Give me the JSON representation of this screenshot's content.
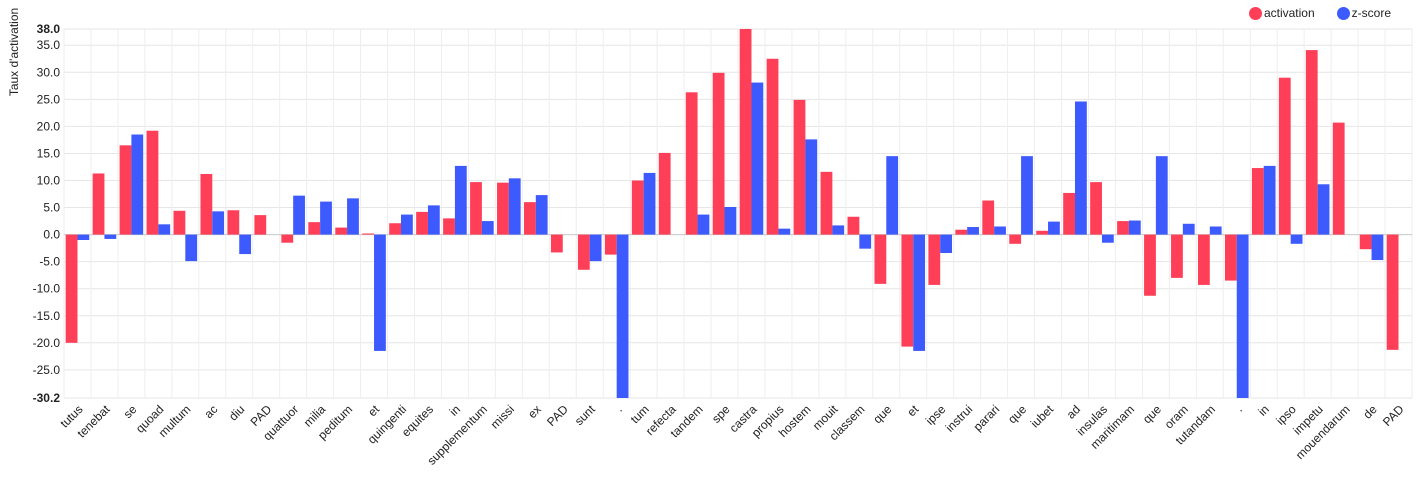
{
  "chart_data": {
    "type": "bar",
    "ylabel": "Taux d'activation",
    "ylim": [
      -30.2,
      38.0
    ],
    "yticks": [
      "38.0",
      "35.0",
      "30.0",
      "25.0",
      "20.0",
      "15.0",
      "10.0",
      "5.0",
      "0.0",
      "-5.0",
      "-10.0",
      "-15.0",
      "-20.0",
      "-25.0",
      "-30.2"
    ],
    "ytick_values": [
      38.0,
      35,
      30,
      25,
      20,
      15,
      10,
      5,
      0,
      -5,
      -10,
      -15,
      -20,
      -25,
      -30.2
    ],
    "grid": true,
    "legend_position": "top-right",
    "categories": [
      "tutus",
      "tenebat",
      "se",
      "quoad",
      "multum",
      "ac",
      "diu",
      "PAD",
      "quattuor",
      "milia",
      "peditum",
      "et",
      "quingenti",
      "equites",
      "in",
      "supplementum",
      "missi",
      "ex",
      "PAD",
      "sunt",
      ".",
      "tum",
      "refecta",
      "tandem",
      "spe",
      "castra",
      "propius",
      "hostem",
      "mouit",
      "classem",
      "que",
      "et",
      "ipse",
      "instrui",
      "parari",
      "que",
      "iubet",
      "ad",
      "insulas",
      "maritimam",
      "que",
      "oram",
      "tutandam",
      ".",
      "in",
      "ipso",
      "impetu",
      "mouendarum",
      "de",
      "PAD"
    ],
    "series": [
      {
        "name": "activation",
        "color": "#ff3e57",
        "values": [
          -20.0,
          11.3,
          16.5,
          19.2,
          4.4,
          11.2,
          4.5,
          3.6,
          -1.5,
          2.3,
          1.3,
          0.2,
          2.1,
          4.2,
          3.0,
          9.7,
          9.6,
          6.0,
          -3.3,
          -6.5,
          -3.7,
          10.0,
          15.1,
          26.3,
          29.9,
          38.0,
          32.5,
          24.9,
          11.6,
          3.3,
          -9.1,
          -20.7,
          -9.3,
          0.9,
          6.3,
          -1.7,
          0.7,
          7.7,
          9.7,
          2.5,
          -11.3,
          -8.0,
          -9.3,
          -8.5,
          12.3,
          29.0,
          34.1,
          20.7,
          -2.7,
          -21.3
        ]
      },
      {
        "name": "z-score",
        "color": "#3d5afe",
        "values": [
          -1.0,
          -0.8,
          18.5,
          1.9,
          -4.9,
          4.3,
          -3.6,
          0.0,
          7.2,
          6.1,
          6.7,
          -21.5,
          3.7,
          5.4,
          12.7,
          2.5,
          10.4,
          7.3,
          0.0,
          -4.9,
          -30.2,
          11.4,
          0.0,
          3.7,
          5.1,
          28.1,
          1.1,
          17.6,
          1.7,
          -2.6,
          14.5,
          -21.5,
          -3.4,
          1.4,
          1.5,
          14.5,
          2.4,
          24.6,
          -1.5,
          2.6,
          14.5,
          2.0,
          1.5,
          -30.2,
          12.7,
          -1.7,
          9.3,
          0.0,
          -4.7,
          0.0
        ]
      }
    ]
  }
}
